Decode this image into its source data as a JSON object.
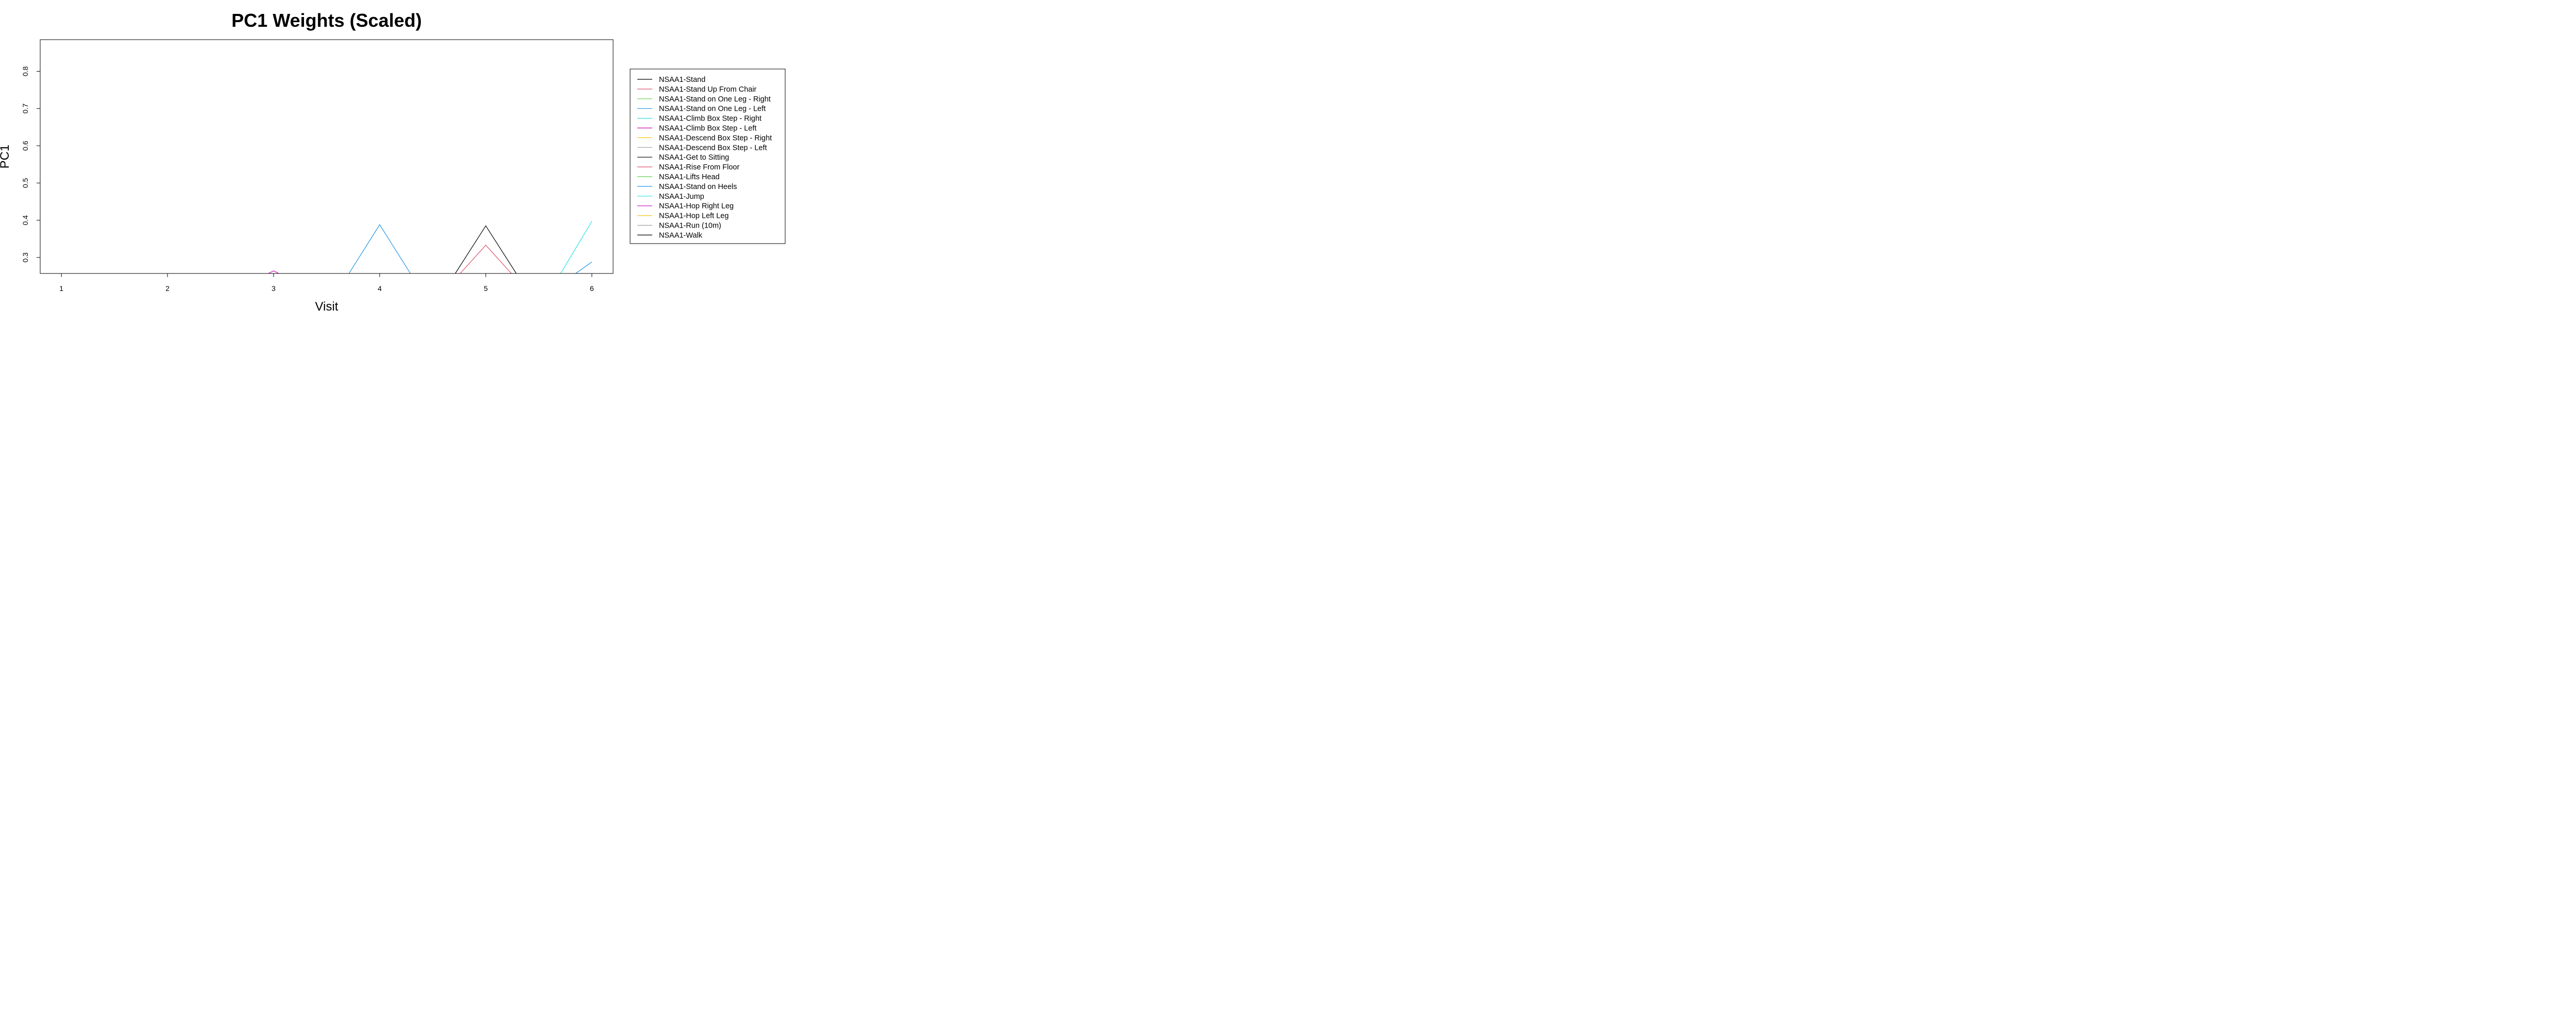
{
  "chart_data": {
    "type": "line",
    "title": "PC1 Weights (Scaled)",
    "xlabel": "Visit",
    "ylabel": "PC1",
    "xlim": [
      0.8,
      6.2
    ],
    "ylim": [
      0.257,
      0.885
    ],
    "x": [
      1,
      2,
      3,
      4,
      5,
      6
    ],
    "x_ticks": [
      "1",
      "2",
      "3",
      "4",
      "5",
      "6"
    ],
    "y_ticks": [
      "0.3",
      "0.4",
      "0.5",
      "0.6",
      "0.7",
      "0.8"
    ],
    "grid": false,
    "legend_position": "right",
    "series": [
      {
        "name": "NSAA1-Stand",
        "color": "#000000",
        "values": [
          null,
          0.257,
          null,
          null,
          null,
          null
        ]
      },
      {
        "name": "NSAA1-Stand Up From Chair",
        "color": "#DF536B",
        "values": [
          null,
          null,
          null,
          null,
          0.333,
          null
        ]
      },
      {
        "name": "NSAA1-Stand on One Leg - Right",
        "color": "#61D04F",
        "values": [
          null,
          null,
          null,
          null,
          null,
          null
        ]
      },
      {
        "name": "NSAA1-Stand on One Leg - Left",
        "color": "#2297E6",
        "values": [
          null,
          null,
          null,
          0.388,
          null,
          0.288
        ]
      },
      {
        "name": "NSAA1-Climb Box Step - Right",
        "color": "#28E2E5",
        "values": [
          null,
          null,
          null,
          null,
          null,
          0.397
        ]
      },
      {
        "name": "NSAA1-Climb Box Step - Left",
        "color": "#CD0BBC",
        "values": [
          null,
          null,
          0.264,
          null,
          null,
          null
        ]
      },
      {
        "name": "NSAA1-Descend Box Step - Right",
        "color": "#F5C710",
        "values": [
          null,
          null,
          null,
          null,
          null,
          null
        ]
      },
      {
        "name": "NSAA1-Descend Box Step - Left",
        "color": "#9E9E9E",
        "values": [
          null,
          null,
          null,
          null,
          null,
          null
        ]
      },
      {
        "name": "NSAA1-Get to Sitting",
        "color": "#000000",
        "values": [
          null,
          null,
          null,
          null,
          0.385,
          null
        ]
      },
      {
        "name": "NSAA1-Rise From Floor",
        "color": "#DF536B",
        "values": [
          null,
          null,
          null,
          null,
          null,
          null
        ]
      },
      {
        "name": "NSAA1-Lifts Head",
        "color": "#61D04F",
        "values": [
          null,
          null,
          null,
          null,
          null,
          null
        ]
      },
      {
        "name": "NSAA1-Stand on Heels",
        "color": "#2297E6",
        "values": [
          null,
          null,
          null,
          null,
          null,
          null
        ]
      },
      {
        "name": "NSAA1-Jump",
        "color": "#28E2E5",
        "values": [
          null,
          null,
          null,
          null,
          null,
          null
        ]
      },
      {
        "name": "NSAA1-Hop Right Leg",
        "color": "#CD0BBC",
        "values": [
          null,
          null,
          null,
          null,
          null,
          null
        ]
      },
      {
        "name": "NSAA1-Hop Left Leg",
        "color": "#F5C710",
        "values": [
          null,
          null,
          null,
          null,
          null,
          null
        ]
      },
      {
        "name": "NSAA1-Run (10m)",
        "color": "#9E9E9E",
        "values": [
          null,
          null,
          null,
          null,
          null,
          null
        ]
      },
      {
        "name": "NSAA1-Walk",
        "color": "#000000",
        "values": [
          null,
          null,
          null,
          null,
          null,
          null
        ]
      }
    ]
  }
}
